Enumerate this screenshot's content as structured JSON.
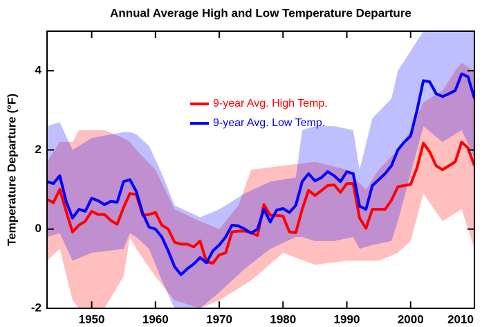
{
  "chart_data": {
    "type": "line",
    "title": "Annual Average High and Low Temperature Departure",
    "y_label": "Temperature Departure (°F)",
    "x": [
      1943,
      1944,
      1945,
      1946,
      1947,
      1948,
      1949,
      1950,
      1951,
      1952,
      1953,
      1954,
      1955,
      1956,
      1957,
      1958,
      1959,
      1960,
      1961,
      1962,
      1963,
      1964,
      1965,
      1966,
      1967,
      1968,
      1969,
      1970,
      1971,
      1972,
      1973,
      1974,
      1975,
      1976,
      1977,
      1978,
      1979,
      1980,
      1981,
      1982,
      1983,
      1984,
      1985,
      1986,
      1987,
      1988,
      1989,
      1990,
      1991,
      1992,
      1993,
      1994,
      1995,
      1996,
      1997,
      1998,
      1999,
      2000,
      2001,
      2002,
      2003,
      2004,
      2005,
      2006,
      2007,
      2008,
      2009,
      2010
    ],
    "series": [
      {
        "name": "9-year Avg. High Temp.",
        "color": "#ff0000",
        "values": [
          0.75,
          0.67,
          1.0,
          0.45,
          -0.07,
          0.1,
          0.2,
          0.45,
          0.37,
          0.37,
          0.22,
          0.12,
          0.55,
          0.9,
          0.87,
          0.35,
          0.37,
          0.42,
          0.1,
          0.0,
          -0.33,
          -0.38,
          -0.38,
          -0.45,
          -0.3,
          -0.83,
          -0.86,
          -0.65,
          -0.6,
          -0.07,
          -0.05,
          -0.05,
          -0.09,
          -0.16,
          0.62,
          0.35,
          0.35,
          0.33,
          -0.07,
          -0.09,
          0.5,
          0.98,
          0.85,
          0.97,
          1.1,
          1.12,
          0.93,
          1.15,
          1.15,
          0.28,
          0.02,
          0.5,
          0.5,
          0.5,
          0.73,
          1.07,
          1.1,
          1.13,
          1.55,
          2.17,
          1.95,
          1.6,
          1.5,
          1.6,
          1.7,
          2.2,
          2.05,
          1.6
        ]
      },
      {
        "name": "9-year Avg. Low Temp.",
        "color": "#0000ff",
        "values": [
          1.2,
          1.15,
          1.35,
          0.7,
          0.28,
          0.5,
          0.45,
          0.78,
          0.72,
          0.62,
          0.7,
          0.68,
          1.2,
          1.25,
          0.95,
          0.4,
          0.05,
          0.0,
          -0.2,
          -0.55,
          -0.95,
          -1.15,
          -1.0,
          -0.88,
          -0.72,
          -0.85,
          -0.55,
          -0.4,
          -0.2,
          0.1,
          0.08,
          0.0,
          -0.1,
          0.0,
          0.5,
          0.18,
          0.48,
          0.52,
          0.42,
          0.6,
          1.2,
          1.4,
          1.22,
          1.3,
          1.45,
          1.35,
          1.2,
          1.45,
          1.4,
          0.58,
          0.5,
          1.1,
          1.25,
          1.4,
          1.6,
          2.0,
          2.2,
          2.35,
          3.0,
          3.75,
          3.72,
          3.42,
          3.35,
          3.42,
          3.5,
          3.92,
          3.85,
          3.3
        ]
      }
    ],
    "bands": [
      {
        "color": "#ff0000",
        "x": [
          1943,
          1945,
          1947,
          1948,
          1952,
          1955,
          1956,
          1957,
          1960,
          1963,
          1967,
          1970,
          1973,
          1975,
          1980,
          1985,
          1990,
          1993,
          1995,
          1998,
          2000,
          2002,
          2005,
          2007,
          2008,
          2010
        ],
        "upper": [
          1.7,
          2.2,
          2.2,
          2.5,
          2.5,
          2.3,
          2.2,
          2.0,
          1.5,
          0.5,
          0.2,
          0.0,
          0.6,
          1.5,
          1.6,
          1.7,
          1.5,
          1.0,
          1.5,
          2.0,
          2.5,
          3.2,
          3.5,
          4.0,
          4.2,
          4.0
        ],
        "lower": [
          -0.8,
          -0.5,
          -1.8,
          -2.0,
          -2.0,
          -1.2,
          -0.2,
          -0.5,
          -1.2,
          -1.8,
          -2.0,
          -1.8,
          -1.5,
          -1.3,
          -0.6,
          -0.9,
          -0.8,
          -0.8,
          -0.8,
          -0.6,
          -0.3,
          0.9,
          0.2,
          0.4,
          0.5,
          -0.5
        ]
      },
      {
        "color": "#0000ff",
        "x": [
          1943,
          1945,
          1947,
          1950,
          1955,
          1956,
          1957,
          1959,
          1961,
          1963,
          1967,
          1970,
          1974,
          1978,
          1982,
          1983,
          1985,
          1988,
          1991,
          1992,
          1994,
          1997,
          1998,
          2000,
          2002,
          2005,
          2008,
          2010
        ],
        "upper": [
          2.6,
          2.7,
          2.0,
          2.3,
          2.45,
          2.45,
          2.4,
          2.1,
          1.4,
          0.6,
          0.3,
          0.5,
          0.9,
          1.2,
          1.3,
          2.5,
          2.6,
          2.6,
          2.5,
          1.5,
          2.8,
          3.3,
          4.0,
          4.5,
          5.0,
          5.0,
          5.0,
          5.0
        ],
        "lower": [
          -0.2,
          -0.1,
          -0.8,
          -0.6,
          -0.5,
          -0.1,
          -0.2,
          -0.5,
          -1.3,
          -2.0,
          -2.0,
          -1.6,
          -1.0,
          -0.5,
          -0.2,
          -0.2,
          -0.3,
          -0.3,
          -0.2,
          -0.5,
          -0.4,
          -0.3,
          0.2,
          1.4,
          2.6,
          2.2,
          2.5,
          1.8
        ]
      }
    ],
    "xlim": [
      1943,
      2010
    ],
    "xticks": [
      1950,
      1960,
      1970,
      1980,
      1990,
      2000,
      2010
    ],
    "ylim": [
      -2,
      5
    ],
    "yticks": [
      -2,
      0,
      2,
      4
    ],
    "band_opacity": 0.25
  }
}
